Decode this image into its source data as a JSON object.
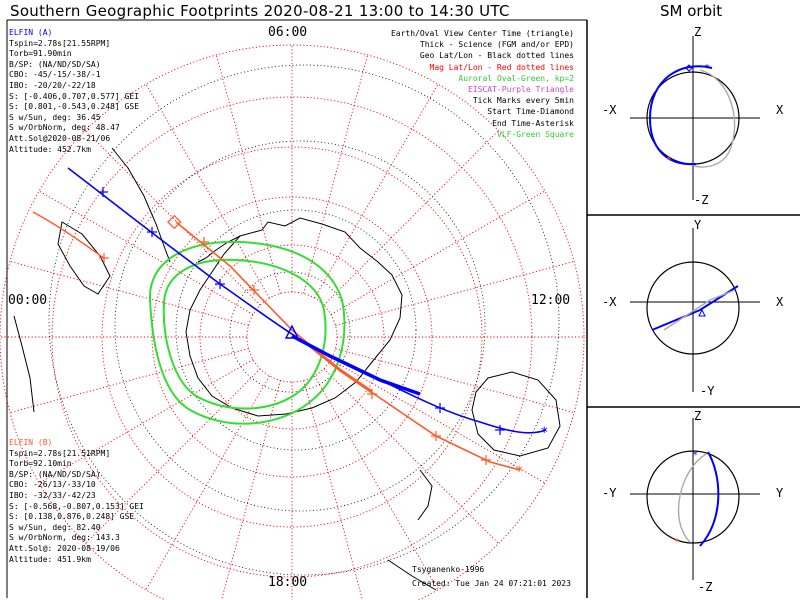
{
  "title": "Southern Geographic Footprints 2020-08-21 13:00 to 14:30 UTC",
  "orbit_title": "SM orbit",
  "mlt_labels": {
    "top": "06:00",
    "left": "00:00",
    "right": "12:00",
    "bottom": "18:00"
  },
  "elfin_a": {
    "header": "ELFIN (A)",
    "color": "#0000ff",
    "lines": [
      "Tspin=2.78s[21.55RPM]",
      "Torb=91.90min",
      "B/SP: (NA/ND/SD/SA)",
      "CBO: -45/-15/-38/-1",
      "IBO: -20/20/-22/18",
      "S: [-0.406,0.707,0.577] GEI",
      "S: [0.801,-0.543,0.248] GSE",
      "S w/Sun, deg: 36.45",
      "S w/OrbNorm, deg: 48.47",
      "Att.Sol@2020-08-21/06",
      "Altitude: 452.7km"
    ]
  },
  "elfin_b": {
    "header": "ELFIN (B)",
    "color": "#ff5a28",
    "lines": [
      "Tspin=2.78s[21.51RPM]",
      "Torb=92.10min",
      "B/SP: (NA/ND/SD/SA)",
      "CBO: -26/13/-33/10",
      "IBO: -32/33/-42/23",
      "S: [-0.568,-0.807,0.153] GEI",
      "S: [0.138,0.876,0.248] GSE",
      "S w/Sun, deg: 82.40",
      "S w/OrbNorm, deg: 143.3",
      "Att.Sol@: 2020-08-19/06",
      "Altitude: 451.9km"
    ]
  },
  "legend": [
    {
      "text": "Earth/Oval View Center Time (triangle)",
      "color": "#000000"
    },
    {
      "text": "Thick - Science (FGM and/or EPD)",
      "color": "#000000"
    },
    {
      "text": "Geo Lat/Lon - Black dotted lines",
      "color": "#000000"
    },
    {
      "text": "Mag Lat/Lon - Red dotted lines",
      "color": "#ff0000"
    },
    {
      "text": "Auroral Oval-Green, kp=2",
      "color": "#33cc33"
    },
    {
      "text": "EISCAT-Purple Triangle",
      "color": "#cc44cc"
    },
    {
      "text": "Tick Marks every 5min",
      "color": "#000000"
    },
    {
      "text": "Start Time-Diamond",
      "color": "#000000"
    },
    {
      "text": "End Time-Asterisk",
      "color": "#000000"
    },
    {
      "text": "VLF-Green Square",
      "color": "#33cc33"
    }
  ],
  "credit": "Tsyganenko-1996",
  "created": "Created: Tue Jan 24 07:21:01 2023",
  "orbit_panels": [
    {
      "top": "Z",
      "bottom": "-Z",
      "left": "-X",
      "right": "X"
    },
    {
      "top": "Y",
      "bottom": "-Y",
      "left": "-X",
      "right": "X"
    },
    {
      "top": "Z",
      "bottom": "-Z",
      "left": "-Y",
      "right": "Y"
    }
  ],
  "colors": {
    "elfin_a": "#0000ff",
    "elfin_b": "#ff5a28",
    "oval": "#33dd33",
    "mag_grid": "#ff0000",
    "geo_grid": "#000000",
    "orbit_gray": "#aaaaaa"
  }
}
